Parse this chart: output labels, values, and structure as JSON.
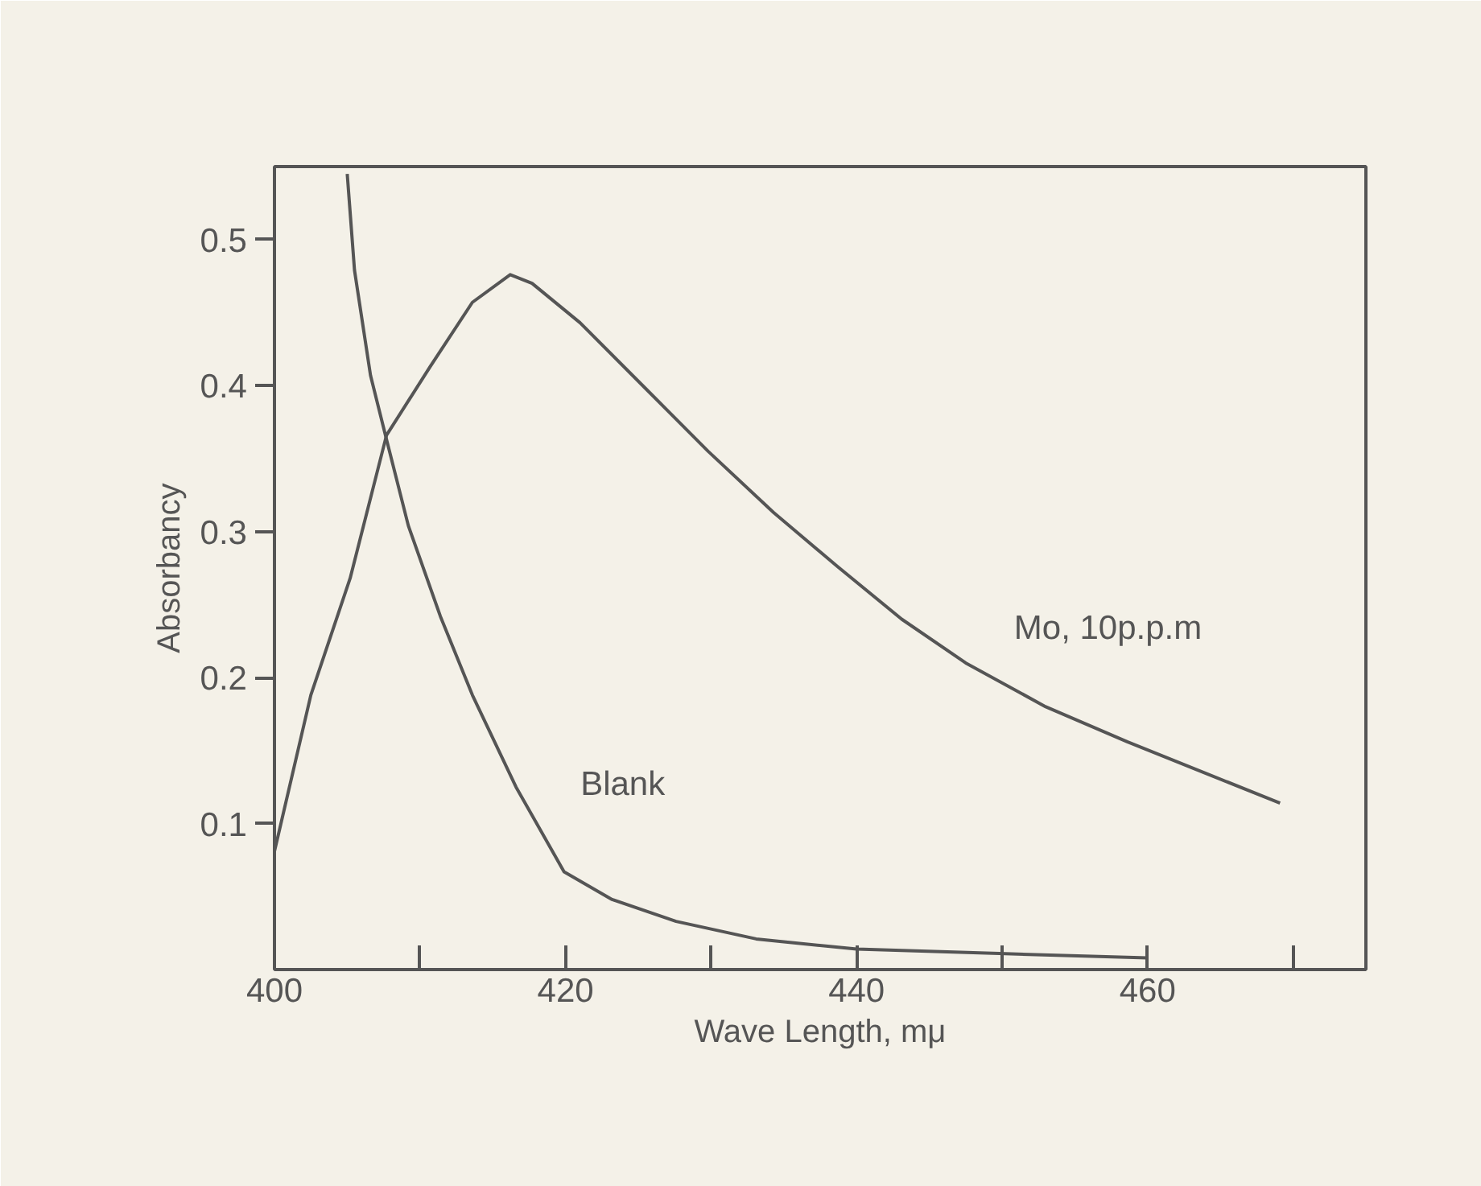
{
  "chart_data": {
    "type": "line",
    "xlabel": "Wave Length, mμ",
    "ylabel": "Absorbancy",
    "xlim": [
      400,
      475
    ],
    "ylim": [
      0,
      0.55
    ],
    "xticks": [
      400,
      {
        "value": 410,
        "label": null
      },
      420,
      {
        "value": 430,
        "label": null
      },
      440,
      {
        "value": 450,
        "label": null
      },
      460,
      {
        "value": 470,
        "label": null
      }
    ],
    "yticks": [
      0.1,
      0.2,
      0.3,
      0.4,
      0.5
    ],
    "grid": false,
    "marker": "none",
    "line_style": "solid",
    "series": [
      {
        "name": "Mo, 10p.p.m",
        "color": "#555555",
        "x": [
          400,
          402.5,
          405.2,
          407.7,
          410.7,
          413.6,
          416.2,
          417.7,
          421,
          425.4,
          429.8,
          434.3,
          438.7,
          443.1,
          447.5,
          453,
          458.6,
          464.1,
          469.1
        ],
        "values": [
          0.081,
          0.188,
          0.268,
          0.366,
          0.413,
          0.457,
          0.476,
          0.47,
          0.443,
          0.399,
          0.355,
          0.313,
          0.276,
          0.24,
          0.21,
          0.18,
          0.156,
          0.134,
          0.114
        ]
      },
      {
        "name": "Blank",
        "color": "#555555",
        "x": [
          405,
          405.5,
          406.6,
          407.7,
          409.2,
          411.4,
          413.6,
          416.6,
          419.9,
          423.2,
          427.6,
          433.1,
          440,
          449.8,
          460
        ],
        "values": [
          0.545,
          0.479,
          0.407,
          0.363,
          0.304,
          0.242,
          0.188,
          0.125,
          0.067,
          0.048,
          0.033,
          0.021,
          0.014,
          0.011,
          0.008
        ]
      }
    ]
  }
}
